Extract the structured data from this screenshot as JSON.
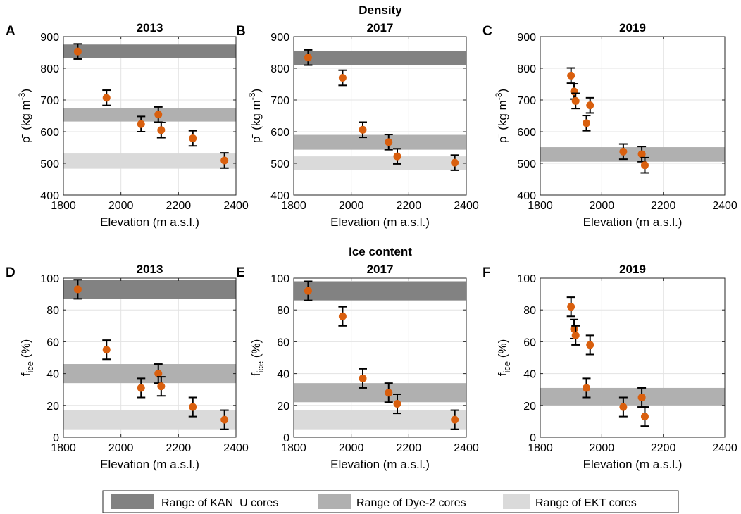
{
  "figure": {
    "row_titles": [
      "Density",
      "Ice content"
    ],
    "legend": [
      {
        "label": "Range of KAN_U cores",
        "color": "#828282"
      },
      {
        "label": "Range of Dye-2 cores",
        "color": "#b0b0b0"
      },
      {
        "label": "Range of EKT cores",
        "color": "#dadada"
      }
    ],
    "point_color": "#d95f0e",
    "errorbar_color": "#000000"
  },
  "chart_data": [
    {
      "type": "scatter",
      "panel": "A",
      "title": "2013",
      "xlabel": "Elevation (m a.s.l.)",
      "ylabel_main": "ρ̄",
      "ylabel_unit": "(kg m",
      "ylabel_exp": "-3",
      "ylabel_close": ")",
      "xlim": [
        1800,
        2400
      ],
      "ylim": [
        400,
        900
      ],
      "xticks": [
        1800,
        2000,
        2200,
        2400
      ],
      "yticks": [
        400,
        500,
        600,
        700,
        800,
        900
      ],
      "bands": [
        {
          "series": "KAN_U",
          "range": [
            832,
            875
          ],
          "color": "#828282"
        },
        {
          "series": "Dye-2",
          "range": [
            632,
            675
          ],
          "color": "#b0b0b0"
        },
        {
          "series": "EKT",
          "range": [
            483,
            531
          ],
          "color": "#dadada"
        }
      ],
      "points": [
        {
          "x": 1850,
          "y": 853,
          "err": 24
        },
        {
          "x": 1950,
          "y": 707,
          "err": 24
        },
        {
          "x": 2070,
          "y": 624,
          "err": 24
        },
        {
          "x": 2130,
          "y": 654,
          "err": 24
        },
        {
          "x": 2140,
          "y": 605,
          "err": 24
        },
        {
          "x": 2250,
          "y": 579,
          "err": 24
        },
        {
          "x": 2360,
          "y": 509,
          "err": 24
        }
      ]
    },
    {
      "type": "scatter",
      "panel": "B",
      "title": "2017",
      "xlabel": "Elevation (m a.s.l.)",
      "ylabel_main": "ρ̄",
      "ylabel_unit": "(kg m",
      "ylabel_exp": "-3",
      "ylabel_close": ")",
      "xlim": [
        1800,
        2400
      ],
      "ylim": [
        400,
        900
      ],
      "xticks": [
        1800,
        2000,
        2200,
        2400
      ],
      "yticks": [
        400,
        500,
        600,
        700,
        800,
        900
      ],
      "bands": [
        {
          "series": "KAN_U",
          "range": [
            810,
            855
          ],
          "color": "#828282"
        },
        {
          "series": "Dye-2",
          "range": [
            543,
            590
          ],
          "color": "#b0b0b0"
        },
        {
          "series": "EKT",
          "range": [
            478,
            522
          ],
          "color": "#dadada"
        }
      ],
      "points": [
        {
          "x": 1850,
          "y": 834,
          "err": 24
        },
        {
          "x": 1970,
          "y": 770,
          "err": 24
        },
        {
          "x": 2040,
          "y": 606,
          "err": 24
        },
        {
          "x": 2130,
          "y": 567,
          "err": 24
        },
        {
          "x": 2160,
          "y": 522,
          "err": 24
        },
        {
          "x": 2360,
          "y": 502,
          "err": 24
        }
      ]
    },
    {
      "type": "scatter",
      "panel": "C",
      "title": "2019",
      "xlabel": "Elevation (m a.s.l.)",
      "ylabel_main": "ρ̄",
      "ylabel_unit": "(kg m",
      "ylabel_exp": "-3",
      "ylabel_close": ")",
      "xlim": [
        1800,
        2400
      ],
      "ylim": [
        400,
        900
      ],
      "xticks": [
        1800,
        2000,
        2200,
        2400
      ],
      "yticks": [
        400,
        500,
        600,
        700,
        800,
        900
      ],
      "bands": [
        {
          "series": "Dye-2",
          "range": [
            505,
            551
          ],
          "color": "#b0b0b0"
        }
      ],
      "points": [
        {
          "x": 1900,
          "y": 777,
          "err": 24
        },
        {
          "x": 1910,
          "y": 727,
          "err": 24
        },
        {
          "x": 1915,
          "y": 697,
          "err": 24
        },
        {
          "x": 1950,
          "y": 627,
          "err": 24
        },
        {
          "x": 1962,
          "y": 683,
          "err": 24
        },
        {
          "x": 2070,
          "y": 537,
          "err": 24
        },
        {
          "x": 2130,
          "y": 529,
          "err": 24
        },
        {
          "x": 2140,
          "y": 494,
          "err": 24
        }
      ]
    },
    {
      "type": "scatter",
      "panel": "D",
      "title": "2013",
      "xlabel": "Elevation (m a.s.l.)",
      "ylabel_main": "f",
      "ylabel_sub": "ice",
      "ylabel_unit": " (%)",
      "xlim": [
        1800,
        2400
      ],
      "ylim": [
        0,
        100
      ],
      "xticks": [
        1800,
        2000,
        2200,
        2400
      ],
      "yticks": [
        0,
        20,
        40,
        60,
        80,
        100
      ],
      "bands": [
        {
          "series": "KAN_U",
          "range": [
            87,
            99
          ],
          "color": "#828282"
        },
        {
          "series": "Dye-2",
          "range": [
            34,
            46
          ],
          "color": "#b0b0b0"
        },
        {
          "series": "EKT",
          "range": [
            5,
            17
          ],
          "color": "#dadada"
        }
      ],
      "points": [
        {
          "x": 1850,
          "y": 93,
          "err": 6
        },
        {
          "x": 1950,
          "y": 55,
          "err": 6
        },
        {
          "x": 2070,
          "y": 31,
          "err": 6
        },
        {
          "x": 2130,
          "y": 40,
          "err": 6
        },
        {
          "x": 2140,
          "y": 32,
          "err": 6
        },
        {
          "x": 2250,
          "y": 19,
          "err": 6
        },
        {
          "x": 2360,
          "y": 11,
          "err": 6
        }
      ]
    },
    {
      "type": "scatter",
      "panel": "E",
      "title": "2017",
      "xlabel": "Elevation (m a.s.l.)",
      "ylabel_main": "f",
      "ylabel_sub": "ice",
      "ylabel_unit": " (%)",
      "xlim": [
        1800,
        2400
      ],
      "ylim": [
        0,
        100
      ],
      "xticks": [
        1800,
        2000,
        2200,
        2400
      ],
      "yticks": [
        0,
        20,
        40,
        60,
        80,
        100
      ],
      "bands": [
        {
          "series": "KAN_U",
          "range": [
            86,
            98
          ],
          "color": "#828282"
        },
        {
          "series": "Dye-2",
          "range": [
            22,
            34
          ],
          "color": "#b0b0b0"
        },
        {
          "series": "EKT",
          "range": [
            5,
            17
          ],
          "color": "#dadada"
        }
      ],
      "points": [
        {
          "x": 1850,
          "y": 92,
          "err": 6
        },
        {
          "x": 1970,
          "y": 76,
          "err": 6
        },
        {
          "x": 2040,
          "y": 37,
          "err": 6
        },
        {
          "x": 2130,
          "y": 28,
          "err": 6
        },
        {
          "x": 2160,
          "y": 21,
          "err": 6
        },
        {
          "x": 2360,
          "y": 11,
          "err": 6
        }
      ]
    },
    {
      "type": "scatter",
      "panel": "F",
      "title": "2019",
      "xlabel": "Elevation (m a.s.l.)",
      "ylabel_main": "f",
      "ylabel_sub": "ice",
      "ylabel_unit": " (%)",
      "xlim": [
        1800,
        2400
      ],
      "ylim": [
        0,
        100
      ],
      "xticks": [
        1800,
        2000,
        2200,
        2400
      ],
      "yticks": [
        0,
        20,
        40,
        60,
        80,
        100
      ],
      "bands": [
        {
          "series": "Dye-2",
          "range": [
            20,
            31
          ],
          "color": "#b0b0b0"
        }
      ],
      "points": [
        {
          "x": 1900,
          "y": 82,
          "err": 6
        },
        {
          "x": 1910,
          "y": 68,
          "err": 6
        },
        {
          "x": 1915,
          "y": 64,
          "err": 6
        },
        {
          "x": 1950,
          "y": 31,
          "err": 6
        },
        {
          "x": 1962,
          "y": 58,
          "err": 6
        },
        {
          "x": 2070,
          "y": 19,
          "err": 6
        },
        {
          "x": 2130,
          "y": 25,
          "err": 6
        },
        {
          "x": 2140,
          "y": 13,
          "err": 6
        }
      ]
    }
  ]
}
